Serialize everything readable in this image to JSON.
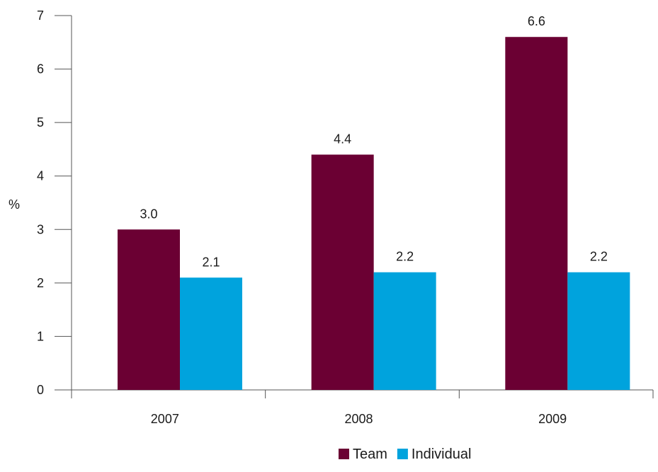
{
  "chart_data": {
    "type": "bar",
    "categories": [
      "2007",
      "2008",
      "2009"
    ],
    "series": [
      {
        "name": "Team",
        "values": [
          3.0,
          4.4,
          6.6
        ],
        "labels": [
          "3.0",
          "4.4",
          "6.6"
        ],
        "color": "#6b0033"
      },
      {
        "name": "Individual",
        "values": [
          2.1,
          2.2,
          2.2
        ],
        "labels": [
          "2.1",
          "2.2",
          "2.2"
        ],
        "color": "#00a3dd"
      }
    ],
    "ylabel": "%",
    "ylim": [
      0,
      7
    ],
    "yticks": [
      "0",
      "1",
      "2",
      "3",
      "4",
      "5",
      "6",
      "7"
    ],
    "grid": false,
    "legend_position": "bottom-center"
  }
}
